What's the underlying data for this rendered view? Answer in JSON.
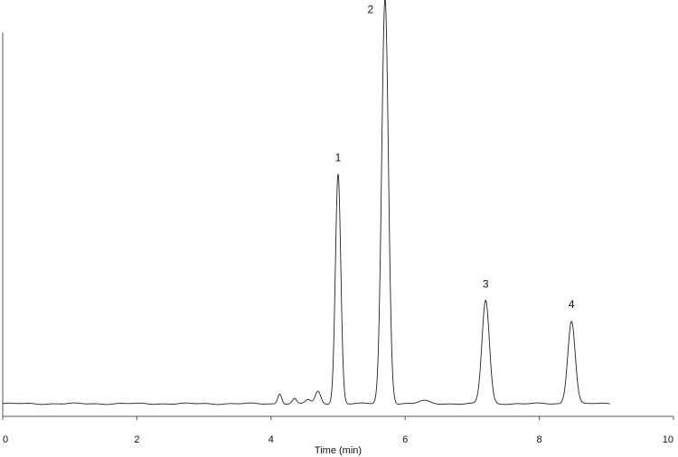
{
  "chart_data": {
    "type": "line",
    "title": "",
    "xlabel": "Time (min)",
    "ylabel": "",
    "xlim": [
      0,
      10
    ],
    "ylim": [
      0,
      1.0
    ],
    "x_ticks": [
      0,
      2,
      4,
      6,
      8,
      10
    ],
    "x_tick_labels": [
      "0",
      "2",
      "4",
      "6",
      "8",
      "10"
    ],
    "grid": false,
    "legend": "none",
    "trace_range": [
      0,
      9.05
    ],
    "baseline": 0.008,
    "peaks": [
      {
        "label": "1",
        "t": 5.0,
        "height": 0.567,
        "width": 0.04
      },
      {
        "label": "2",
        "t": 5.7,
        "height": 1.0,
        "width": 0.05
      },
      {
        "label": "3",
        "t": 7.2,
        "height": 0.255,
        "width": 0.055
      },
      {
        "label": "4",
        "t": 8.48,
        "height": 0.205,
        "width": 0.055
      }
    ],
    "minor_peaks": [
      {
        "t": 4.13,
        "height": 0.025,
        "width": 0.03
      },
      {
        "t": 4.35,
        "height": 0.012,
        "width": 0.03
      },
      {
        "t": 4.55,
        "height": 0.01,
        "width": 0.04
      },
      {
        "t": 4.7,
        "height": 0.03,
        "width": 0.04
      },
      {
        "t": 6.28,
        "height": 0.007,
        "width": 0.08
      }
    ]
  }
}
